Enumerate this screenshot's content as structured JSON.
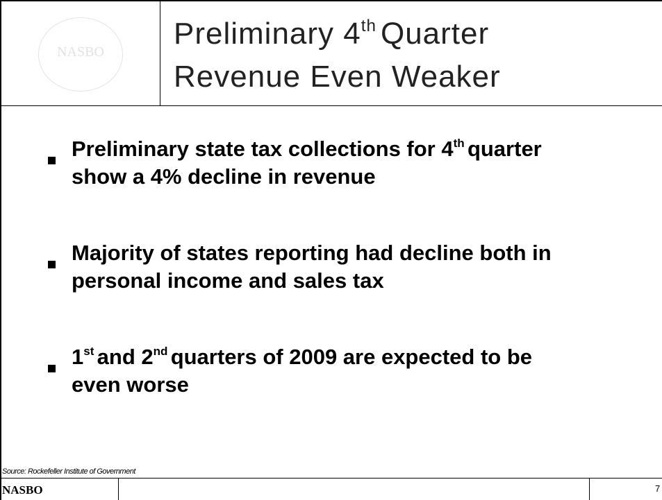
{
  "header": {
    "logo_text": "NASBO",
    "title": {
      "line1": [
        "Preliminary 4",
        "th",
        "Quarter"
      ],
      "line2": "Revenue Even Weaker"
    }
  },
  "bullets": [
    [
      "Preliminary state tax collections for 4",
      "th",
      "quarter show a 4% decline in revenue"
    ],
    [
      "Majority of states reporting had decline both in personal income and sales tax"
    ],
    [
      "1",
      "st",
      "and 2",
      "nd",
      "quarters of 2009 are expected to be even worse"
    ]
  ],
  "source": "Source: Rockefeller Institute of Government",
  "footer": {
    "left": "NASBO",
    "page": "7"
  }
}
